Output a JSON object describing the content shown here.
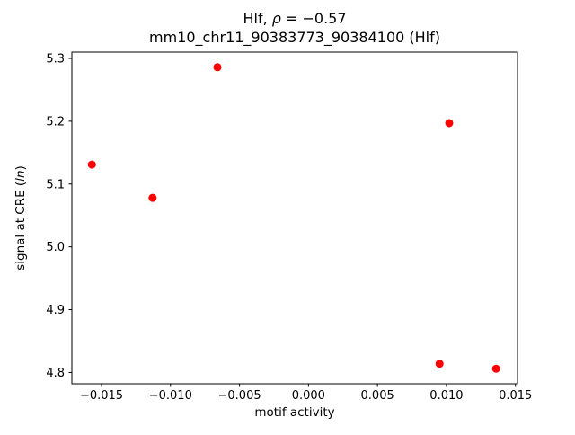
{
  "figure": {
    "background": "#ffffff",
    "title_line1_parts": [
      {
        "text": "Hlf, ",
        "italic": false
      },
      {
        "text": "ρ",
        "italic": true
      },
      {
        "text": " = −0.57",
        "italic": false
      }
    ],
    "title_line2": "mm10_chr11_90383773_90384100 (Hlf)",
    "xlabel": "motif activity",
    "ylabel_parts": [
      {
        "text": "signal at CRE (",
        "italic": false
      },
      {
        "text": "ln",
        "italic": true
      },
      {
        "text": ")",
        "italic": false
      }
    ]
  },
  "chart_data": {
    "type": "scatter",
    "title": "Hlf, ρ = −0.57",
    "subtitle": "mm10_chr11_90383773_90384100 (Hlf)",
    "xlabel": "motif activity",
    "ylabel": "signal at CRE (ln)",
    "marker_color": "#ff0000",
    "marker_radius": 4.5,
    "grid": false,
    "legend": null,
    "xlim": [
      -0.01715,
      0.01515
    ],
    "ylim": [
      4.782,
      5.31
    ],
    "points": [
      {
        "x": -0.0157,
        "y": 5.131
      },
      {
        "x": -0.0113,
        "y": 5.078
      },
      {
        "x": -0.0066,
        "y": 5.286
      },
      {
        "x": 0.0095,
        "y": 4.814
      },
      {
        "x": 0.0102,
        "y": 5.197
      },
      {
        "x": 0.0136,
        "y": 4.806
      }
    ],
    "x_ticks": [
      {
        "value": -0.015,
        "label": "−0.015"
      },
      {
        "value": -0.01,
        "label": "−0.010"
      },
      {
        "value": -0.005,
        "label": "−0.005"
      },
      {
        "value": 0.0,
        "label": "0.000"
      },
      {
        "value": 0.005,
        "label": "0.005"
      },
      {
        "value": 0.01,
        "label": "0.010"
      },
      {
        "value": 0.015,
        "label": "0.015"
      }
    ],
    "y_ticks": [
      {
        "value": 4.8,
        "label": "4.8"
      },
      {
        "value": 4.9,
        "label": "4.9"
      },
      {
        "value": 5.0,
        "label": "5.0"
      },
      {
        "value": 5.1,
        "label": "5.1"
      },
      {
        "value": 5.2,
        "label": "5.2"
      },
      {
        "value": 5.3,
        "label": "5.3"
      }
    ]
  }
}
